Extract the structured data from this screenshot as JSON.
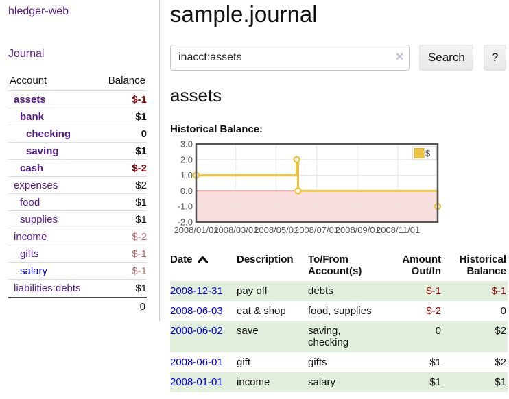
{
  "app": {
    "brand": "hledger-web"
  },
  "sidebar": {
    "nav": [
      {
        "label": "Journal"
      }
    ],
    "accounts_table": {
      "headers": {
        "account": "Account",
        "balance": "Balance"
      },
      "rows": [
        {
          "name": "assets",
          "indent": 0,
          "balance": "$-1",
          "bold": true,
          "negative": true,
          "link_color": "purple"
        },
        {
          "name": "bank",
          "indent": 1,
          "balance": "$1",
          "bold": true,
          "negative": false,
          "link_color": "purple"
        },
        {
          "name": "checking",
          "indent": 2,
          "balance": "0",
          "bold": true,
          "negative": false,
          "link_color": "purple"
        },
        {
          "name": "saving",
          "indent": 2,
          "balance": "$1",
          "bold": true,
          "negative": false,
          "link_color": "purple"
        },
        {
          "name": "cash",
          "indent": 1,
          "balance": "$-2",
          "bold": true,
          "negative": true,
          "link_color": "purple"
        },
        {
          "name": "expenses",
          "indent": 0,
          "balance": "$2",
          "bold": false,
          "negative": false,
          "link_color": "purple"
        },
        {
          "name": "food",
          "indent": 1,
          "balance": "$1",
          "bold": false,
          "negative": false,
          "link_color": "purple"
        },
        {
          "name": "supplies",
          "indent": 1,
          "balance": "$1",
          "bold": false,
          "negative": false,
          "link_color": "purple"
        },
        {
          "name": "income",
          "indent": 0,
          "balance": "$-2",
          "bold": false,
          "negative": true,
          "link_color": "purple"
        },
        {
          "name": "gifts",
          "indent": 1,
          "balance": "$-1",
          "bold": false,
          "negative": true,
          "link_color": "purple"
        },
        {
          "name": "salary",
          "indent": 1,
          "balance": "$-1",
          "bold": false,
          "negative": true,
          "link_color": "blue"
        },
        {
          "name": "liabilities:debts",
          "indent": 0,
          "balance": "$1",
          "bold": false,
          "negative": false,
          "link_color": "purple"
        }
      ],
      "total": "0"
    }
  },
  "header": {
    "title": "sample.journal"
  },
  "search": {
    "value": "inacct:assets",
    "clear_icon": "×",
    "button": "Search",
    "help_button": "?"
  },
  "account_page": {
    "heading": "assets",
    "chart_label": "Historical Balance:"
  },
  "chart_data": {
    "type": "line",
    "step": "after",
    "title": "Historical Balance:",
    "series": [
      {
        "name": "$",
        "color": "#edc240",
        "points": [
          [
            "2008-01-01",
            1.0
          ],
          [
            "2008-06-01",
            2.0
          ],
          [
            "2008-06-03",
            0.0
          ],
          [
            "2008-12-31",
            -1.0
          ]
        ]
      }
    ],
    "x_ticks": [
      "2008/01/01",
      "2008/03/01",
      "2008/05/01",
      "2008/07/01",
      "2008/09/01",
      "2008/11/01"
    ],
    "y_ticks": [
      "3.0",
      "2.0",
      "1.0",
      "0.0",
      "-1.0",
      "-2.0"
    ],
    "ylim": [
      -2,
      3
    ],
    "xlim": [
      "2008-01-01",
      "2008-12-31"
    ],
    "grid": true,
    "legend": {
      "position": "top-right",
      "entries": [
        {
          "label": "$",
          "color": "#edc240"
        }
      ]
    },
    "markings": {
      "negative_region_fill": "#f9dede",
      "zero_line_color": "#8b0000"
    }
  },
  "transactions": {
    "headers": [
      {
        "label": "Date",
        "sorted": "asc",
        "align": "left"
      },
      {
        "label": "Description",
        "align": "left"
      },
      {
        "label": "To/From\nAccount(s)",
        "align": "left"
      },
      {
        "label": "Amount\nOut/In",
        "align": "right"
      },
      {
        "label": "Historical\nBalance",
        "align": "right"
      }
    ],
    "rows": [
      {
        "date": "2008-12-31",
        "description": "pay off",
        "accounts": "debts",
        "amount": "$-1",
        "amount_negative": true,
        "balance": "$-1",
        "balance_negative": true
      },
      {
        "date": "2008-06-03",
        "description": "eat & shop",
        "accounts": "food, supplies",
        "amount": "$-2",
        "amount_negative": true,
        "balance": "0",
        "balance_negative": false
      },
      {
        "date": "2008-06-02",
        "description": "save",
        "accounts": "saving,\nchecking",
        "amount": "0",
        "amount_negative": false,
        "balance": "$2",
        "balance_negative": false
      },
      {
        "date": "2008-06-01",
        "description": "gift",
        "accounts": "gifts",
        "amount": "$1",
        "amount_negative": false,
        "balance": "$2",
        "balance_negative": false
      },
      {
        "date": "2008-01-01",
        "description": "income",
        "accounts": "salary",
        "amount": "$1",
        "amount_negative": false,
        "balance": "$1",
        "balance_negative": false
      }
    ]
  },
  "colors": {
    "link_purple": "#551a8b",
    "link_blue": "#0000dd",
    "negative_strong": "#8b0000",
    "negative_muted": "#bb6a6a",
    "row_green": "#e1efdc",
    "chart_gold": "#edc240",
    "chart_border": "#545454",
    "grid_line": "#e8e8e8"
  }
}
